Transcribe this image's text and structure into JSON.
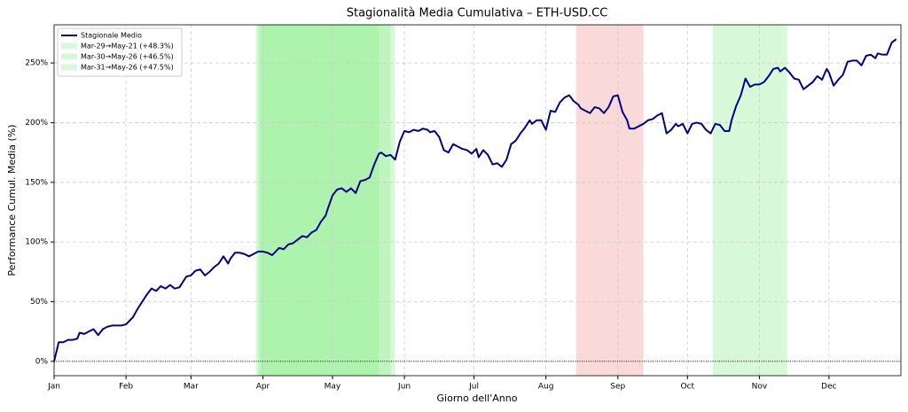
{
  "chart_data": {
    "type": "line",
    "title": "Stagionalità Media Cumulativa – ETH-USD.CC",
    "x_label": "Giorno dell'Anno",
    "y_label": "Performance Cumul. Media (%)",
    "x": [
      1,
      3,
      5,
      7,
      9,
      11,
      12,
      14,
      16,
      18,
      20,
      22,
      24,
      26,
      28,
      30,
      32,
      33,
      35,
      37,
      39,
      41,
      43,
      45,
      47,
      49,
      51,
      53,
      55,
      56,
      58,
      60,
      62,
      64,
      66,
      68,
      70,
      72,
      74,
      76,
      77,
      79,
      81,
      83,
      85,
      87,
      89,
      91,
      93,
      95,
      97,
      98,
      100,
      102,
      104,
      106,
      108,
      110,
      112,
      114,
      116,
      118,
      119,
      121,
      123,
      125,
      127,
      129,
      131,
      133,
      135,
      137,
      139,
      141,
      142,
      144,
      146,
      148,
      150,
      152,
      154,
      156,
      158,
      160,
      162,
      163,
      165,
      167,
      169,
      171,
      173,
      175,
      177,
      179,
      181,
      183,
      184,
      186,
      188,
      190,
      192,
      194,
      196,
      198,
      200,
      202,
      204,
      206,
      207,
      209,
      211,
      213,
      215,
      217,
      219,
      221,
      223,
      225,
      227,
      228,
      230,
      232,
      234,
      236,
      238,
      240,
      242,
      244,
      246,
      248,
      249,
      251,
      253,
      255,
      257,
      259,
      261,
      263,
      265,
      267,
      269,
      270,
      272,
      274,
      276,
      278,
      280,
      282,
      284,
      286,
      288,
      290,
      292,
      293,
      295,
      297,
      299,
      301,
      303,
      305,
      307,
      309,
      311,
      313,
      314,
      316,
      318,
      320,
      322,
      324,
      326,
      328,
      330,
      332,
      334,
      335,
      337,
      339,
      341,
      343,
      345,
      347,
      349,
      351,
      353,
      355,
      356,
      358,
      360,
      362,
      364
    ],
    "series": [
      {
        "name": "Stagionale Medio",
        "color": "#00008b",
        "values": [
          0,
          16,
          16,
          18,
          18,
          19,
          24,
          23,
          25,
          27,
          22,
          27,
          29,
          30,
          30,
          30,
          31,
          33,
          37,
          44,
          50,
          56,
          61,
          59,
          63,
          61,
          64,
          61,
          62,
          65,
          71,
          72,
          76,
          77,
          72,
          75,
          79,
          82,
          88,
          82,
          86,
          91,
          91,
          90,
          88,
          90,
          92,
          92,
          91,
          89,
          93,
          95,
          94,
          98,
          99,
          102,
          105,
          104,
          108,
          110,
          117,
          122,
          128,
          139,
          144,
          145,
          142,
          145,
          141,
          151,
          152,
          154,
          165,
          174,
          175,
          172,
          173,
          169,
          184,
          193,
          192,
          194,
          193,
          195,
          194,
          192,
          193,
          188,
          177,
          175,
          182,
          180,
          178,
          177,
          174,
          178,
          171,
          177,
          173,
          165,
          166,
          163,
          169,
          182,
          185,
          191,
          196,
          202,
          199,
          202,
          202,
          194,
          210,
          209,
          217,
          221,
          223,
          218,
          215,
          212,
          210,
          208,
          213,
          212,
          208,
          213,
          222,
          223,
          209,
          202,
          195,
          195,
          197,
          199,
          202,
          203,
          206,
          208,
          191,
          194,
          199,
          197,
          199,
          191,
          199,
          200,
          199,
          194,
          191,
          199,
          198,
          193,
          193,
          202,
          214,
          223,
          237,
          230,
          232,
          232,
          234,
          239,
          245,
          246,
          243,
          246,
          242,
          237,
          236,
          228,
          231,
          234,
          239,
          236,
          245,
          242,
          231,
          236,
          240,
          251,
          252,
          252,
          248,
          256,
          257,
          254,
          258,
          257,
          257,
          267,
          270
        ]
      }
    ],
    "spans": [
      {
        "start": 88,
        "end": 141,
        "color": "#90ee90",
        "alpha": 0.35,
        "label": "Mar-29→May-21 (+48.3%)"
      },
      {
        "start": 89,
        "end": 146,
        "color": "#90ee90",
        "alpha": 0.35,
        "label": "Mar-30→May-26 (+46.5%)"
      },
      {
        "start": 90,
        "end": 148,
        "color": "#90ee90",
        "alpha": 0.35,
        "label": "Mar-31→May-26 (+47.5%)"
      },
      {
        "start": 226,
        "end": 255,
        "color": "#f08080",
        "alpha": 0.3
      },
      {
        "start": 285,
        "end": 317,
        "color": "#90ee90",
        "alpha": 0.35
      }
    ],
    "xlim": [
      1,
      366
    ],
    "xticks": [
      {
        "value": 1,
        "label": "Jan"
      },
      {
        "value": 32,
        "label": "Feb"
      },
      {
        "value": 60,
        "label": "Mar"
      },
      {
        "value": 91,
        "label": "Apr"
      },
      {
        "value": 121,
        "label": "May"
      },
      {
        "value": 152,
        "label": "Jun"
      },
      {
        "value": 182,
        "label": "Jul"
      },
      {
        "value": 213,
        "label": "Aug"
      },
      {
        "value": 244,
        "label": "Sep"
      },
      {
        "value": 274,
        "label": "Oct"
      },
      {
        "value": 305,
        "label": "Nov"
      },
      {
        "value": 335,
        "label": "Dec"
      }
    ],
    "ylim": [
      -12,
      282
    ],
    "yticks": [
      {
        "value": 0,
        "label": "0%"
      },
      {
        "value": 50,
        "label": "50%"
      },
      {
        "value": 100,
        "label": "100%"
      },
      {
        "value": 150,
        "label": "150%"
      },
      {
        "value": 200,
        "label": "200%"
      },
      {
        "value": 250,
        "label": "250%"
      }
    ],
    "grid": true,
    "zero_line": 0,
    "legend": "upper left"
  }
}
